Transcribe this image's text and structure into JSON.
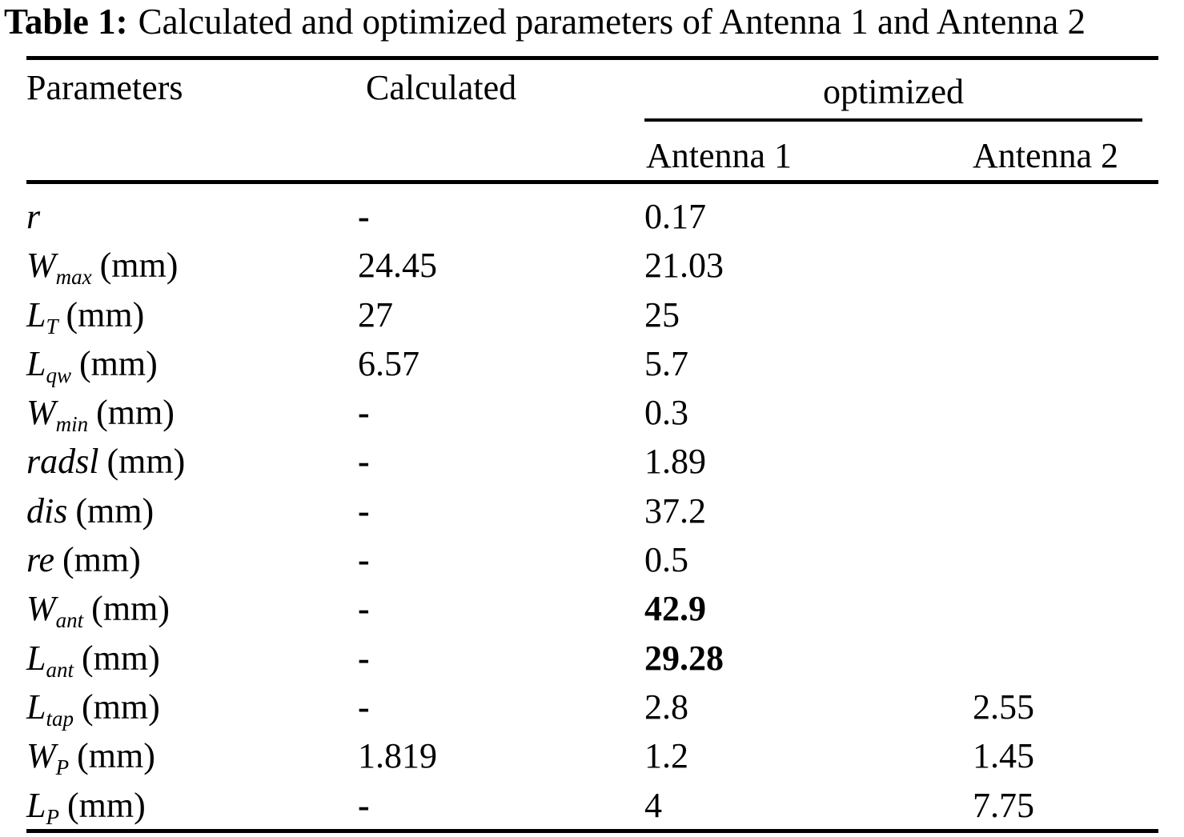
{
  "page": {
    "background_color": "#ffffff",
    "text_color": "#000000",
    "rule_color": "#000000"
  },
  "caption": {
    "label": "Table 1:",
    "text": "Calculated and optimized parameters of Antenna 1 and Antenna 2"
  },
  "table": {
    "headers": {
      "parameters": "Parameters",
      "calculated": "Calculated",
      "optimized": "optimized",
      "antenna1": "Antenna 1",
      "antenna2": "Antenna 2"
    },
    "rows": [
      {
        "param": {
          "base": "r",
          "sub": "",
          "unit": ""
        },
        "calculated": "-",
        "antenna1": "0.17",
        "antenna1_bold": false,
        "antenna2": ""
      },
      {
        "param": {
          "base": "W",
          "sub": "max",
          "unit": "(mm)"
        },
        "calculated": "24.45",
        "antenna1": "21.03",
        "antenna1_bold": false,
        "antenna2": ""
      },
      {
        "param": {
          "base": "L",
          "sub": "T",
          "unit": "(mm)"
        },
        "calculated": "27",
        "antenna1": "25",
        "antenna1_bold": false,
        "antenna2": ""
      },
      {
        "param": {
          "base": "L",
          "sub": "qw",
          "unit": "(mm)"
        },
        "calculated": "6.57",
        "antenna1": "5.7",
        "antenna1_bold": false,
        "antenna2": ""
      },
      {
        "param": {
          "base": "W",
          "sub": "min",
          "unit": "(mm)"
        },
        "calculated": "-",
        "antenna1": "0.3",
        "antenna1_bold": false,
        "antenna2": ""
      },
      {
        "param": {
          "base": "radsl",
          "sub": "",
          "unit": "(mm)"
        },
        "calculated": "-",
        "antenna1": "1.89",
        "antenna1_bold": false,
        "antenna2": ""
      },
      {
        "param": {
          "base": "dis",
          "sub": "",
          "unit": "(mm)"
        },
        "calculated": "-",
        "antenna1": "37.2",
        "antenna1_bold": false,
        "antenna2": ""
      },
      {
        "param": {
          "base": "re",
          "sub": "",
          "unit": "(mm)"
        },
        "calculated": "-",
        "antenna1": "0.5",
        "antenna1_bold": false,
        "antenna2": ""
      },
      {
        "param": {
          "base": "W",
          "sub": "ant",
          "unit": "(mm)"
        },
        "calculated": "-",
        "antenna1": "42.9",
        "antenna1_bold": true,
        "antenna2": ""
      },
      {
        "param": {
          "base": "L",
          "sub": "ant",
          "unit": "(mm)"
        },
        "calculated": "-",
        "antenna1": "29.28",
        "antenna1_bold": true,
        "antenna2": ""
      },
      {
        "param": {
          "base": "L",
          "sub": "tap",
          "unit": "(mm)"
        },
        "calculated": "-",
        "antenna1": "2.8",
        "antenna1_bold": false,
        "antenna2": "2.55"
      },
      {
        "param": {
          "base": "W",
          "sub": "P",
          "unit": "(mm)"
        },
        "calculated": "1.819",
        "antenna1": "1.2",
        "antenna1_bold": false,
        "antenna2": "1.45"
      },
      {
        "param": {
          "base": "L",
          "sub": "P",
          "unit": "(mm)"
        },
        "calculated": "-",
        "antenna1": "4",
        "antenna1_bold": false,
        "antenna2": "7.75"
      }
    ]
  }
}
